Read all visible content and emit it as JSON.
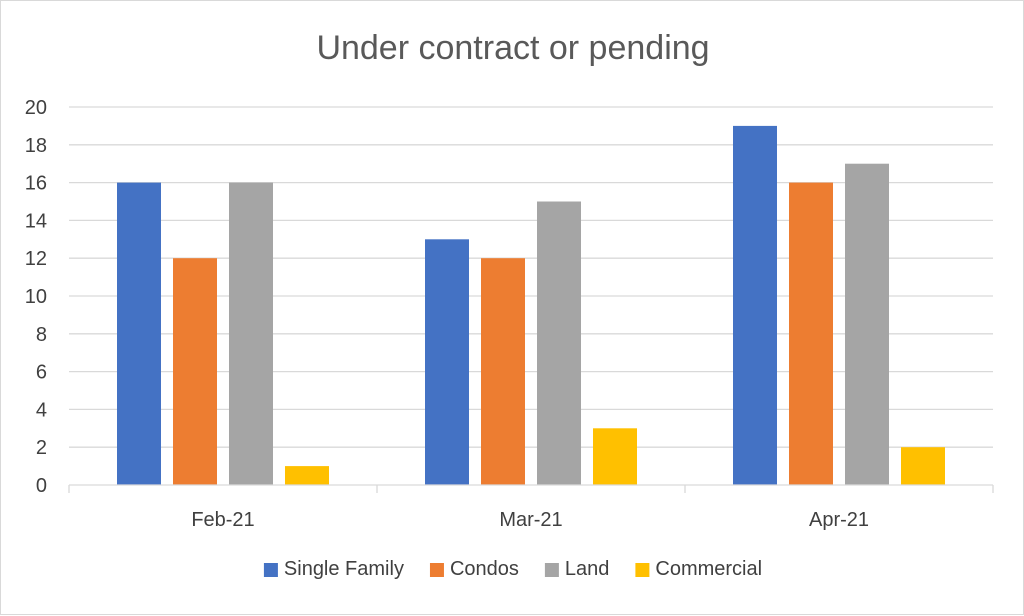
{
  "chart_data": {
    "type": "bar",
    "title": "Under contract or pending",
    "categories": [
      "Feb-21",
      "Mar-21",
      "Apr-21"
    ],
    "series": [
      {
        "name": "Single Family",
        "color": "#4472C4",
        "values": [
          16,
          13,
          19
        ]
      },
      {
        "name": "Condos",
        "color": "#ED7D31",
        "values": [
          12,
          12,
          16
        ]
      },
      {
        "name": "Land",
        "color": "#A5A5A5",
        "values": [
          16,
          15,
          17
        ]
      },
      {
        "name": "Commercial",
        "color": "#FFC000",
        "values": [
          1,
          3,
          2
        ]
      }
    ],
    "ylim": [
      0,
      20
    ],
    "yticks": [
      0,
      2,
      4,
      6,
      8,
      10,
      12,
      14,
      16,
      18,
      20
    ],
    "grid": true,
    "legend": "bottom",
    "xlabel": "",
    "ylabel": ""
  }
}
